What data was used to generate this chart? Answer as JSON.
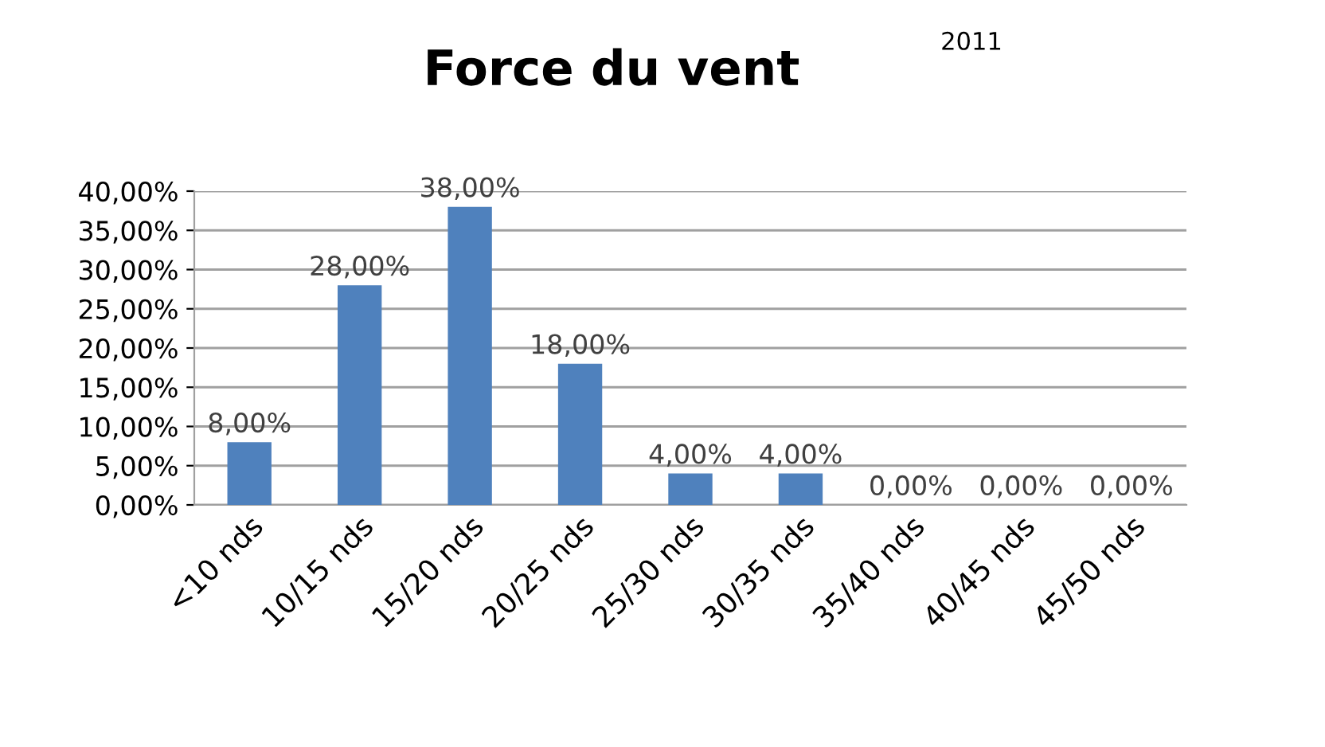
{
  "chart_data": {
    "type": "bar",
    "title": "Force du vent",
    "annotations": [
      "2011"
    ],
    "categories": [
      "<10 nds",
      "10/15 nds",
      "15/20 nds",
      "20/25 nds",
      "25/30 nds",
      "30/35 nds",
      "35/40 nds",
      "40/45 nds",
      "45/50 nds"
    ],
    "values": [
      8,
      28,
      38,
      18,
      4,
      4,
      0,
      0,
      0
    ],
    "value_labels": [
      "8,00%",
      "28,00%",
      "38,00%",
      "18,00%",
      "4,00%",
      "4,00%",
      "0,00%",
      "0,00%",
      "0,00%"
    ],
    "color": "#4f81bd",
    "ylim": [
      0,
      40
    ],
    "yticks": [
      {
        "value": 0,
        "label": "0,00%"
      },
      {
        "value": 5,
        "label": "5,00%"
      },
      {
        "value": 10,
        "label": "10,00%"
      },
      {
        "value": 15,
        "label": "15,00%"
      },
      {
        "value": 20,
        "label": "20,00%"
      },
      {
        "value": 25,
        "label": "25,00%"
      },
      {
        "value": 30,
        "label": "30,00%"
      },
      {
        "value": 35,
        "label": "35,00%"
      },
      {
        "value": 40,
        "label": "40,00%"
      }
    ],
    "grid": "y",
    "legend": false
  }
}
